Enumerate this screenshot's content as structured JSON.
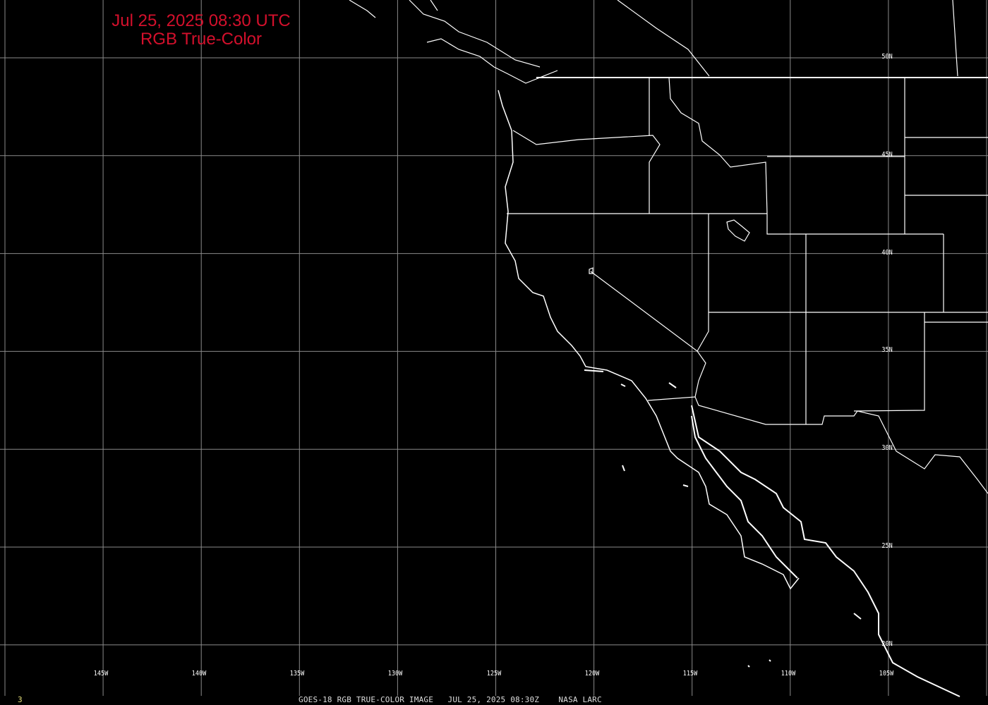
{
  "title": {
    "line1": "Jul 25, 2025 08:30 UTC",
    "line2": "RGB True-Color",
    "color": "#d4102c"
  },
  "caption": "GOES-18 RGB TRUE-COLOR IMAGE   JUL 25, 2025 08:30Z    NASA LARC",
  "frame_number": "3",
  "longitude_labels": [
    "145W",
    "140W",
    "135W",
    "130W",
    "125W",
    "120W",
    "115W",
    "110W",
    "105W"
  ],
  "latitude_labels": [
    "50N",
    "45N",
    "40N",
    "35N",
    "30N",
    "25N",
    "20N"
  ],
  "colors": {
    "background": "#000000",
    "grid": "#8a8a8a",
    "boundaries": "#ffffff"
  }
}
